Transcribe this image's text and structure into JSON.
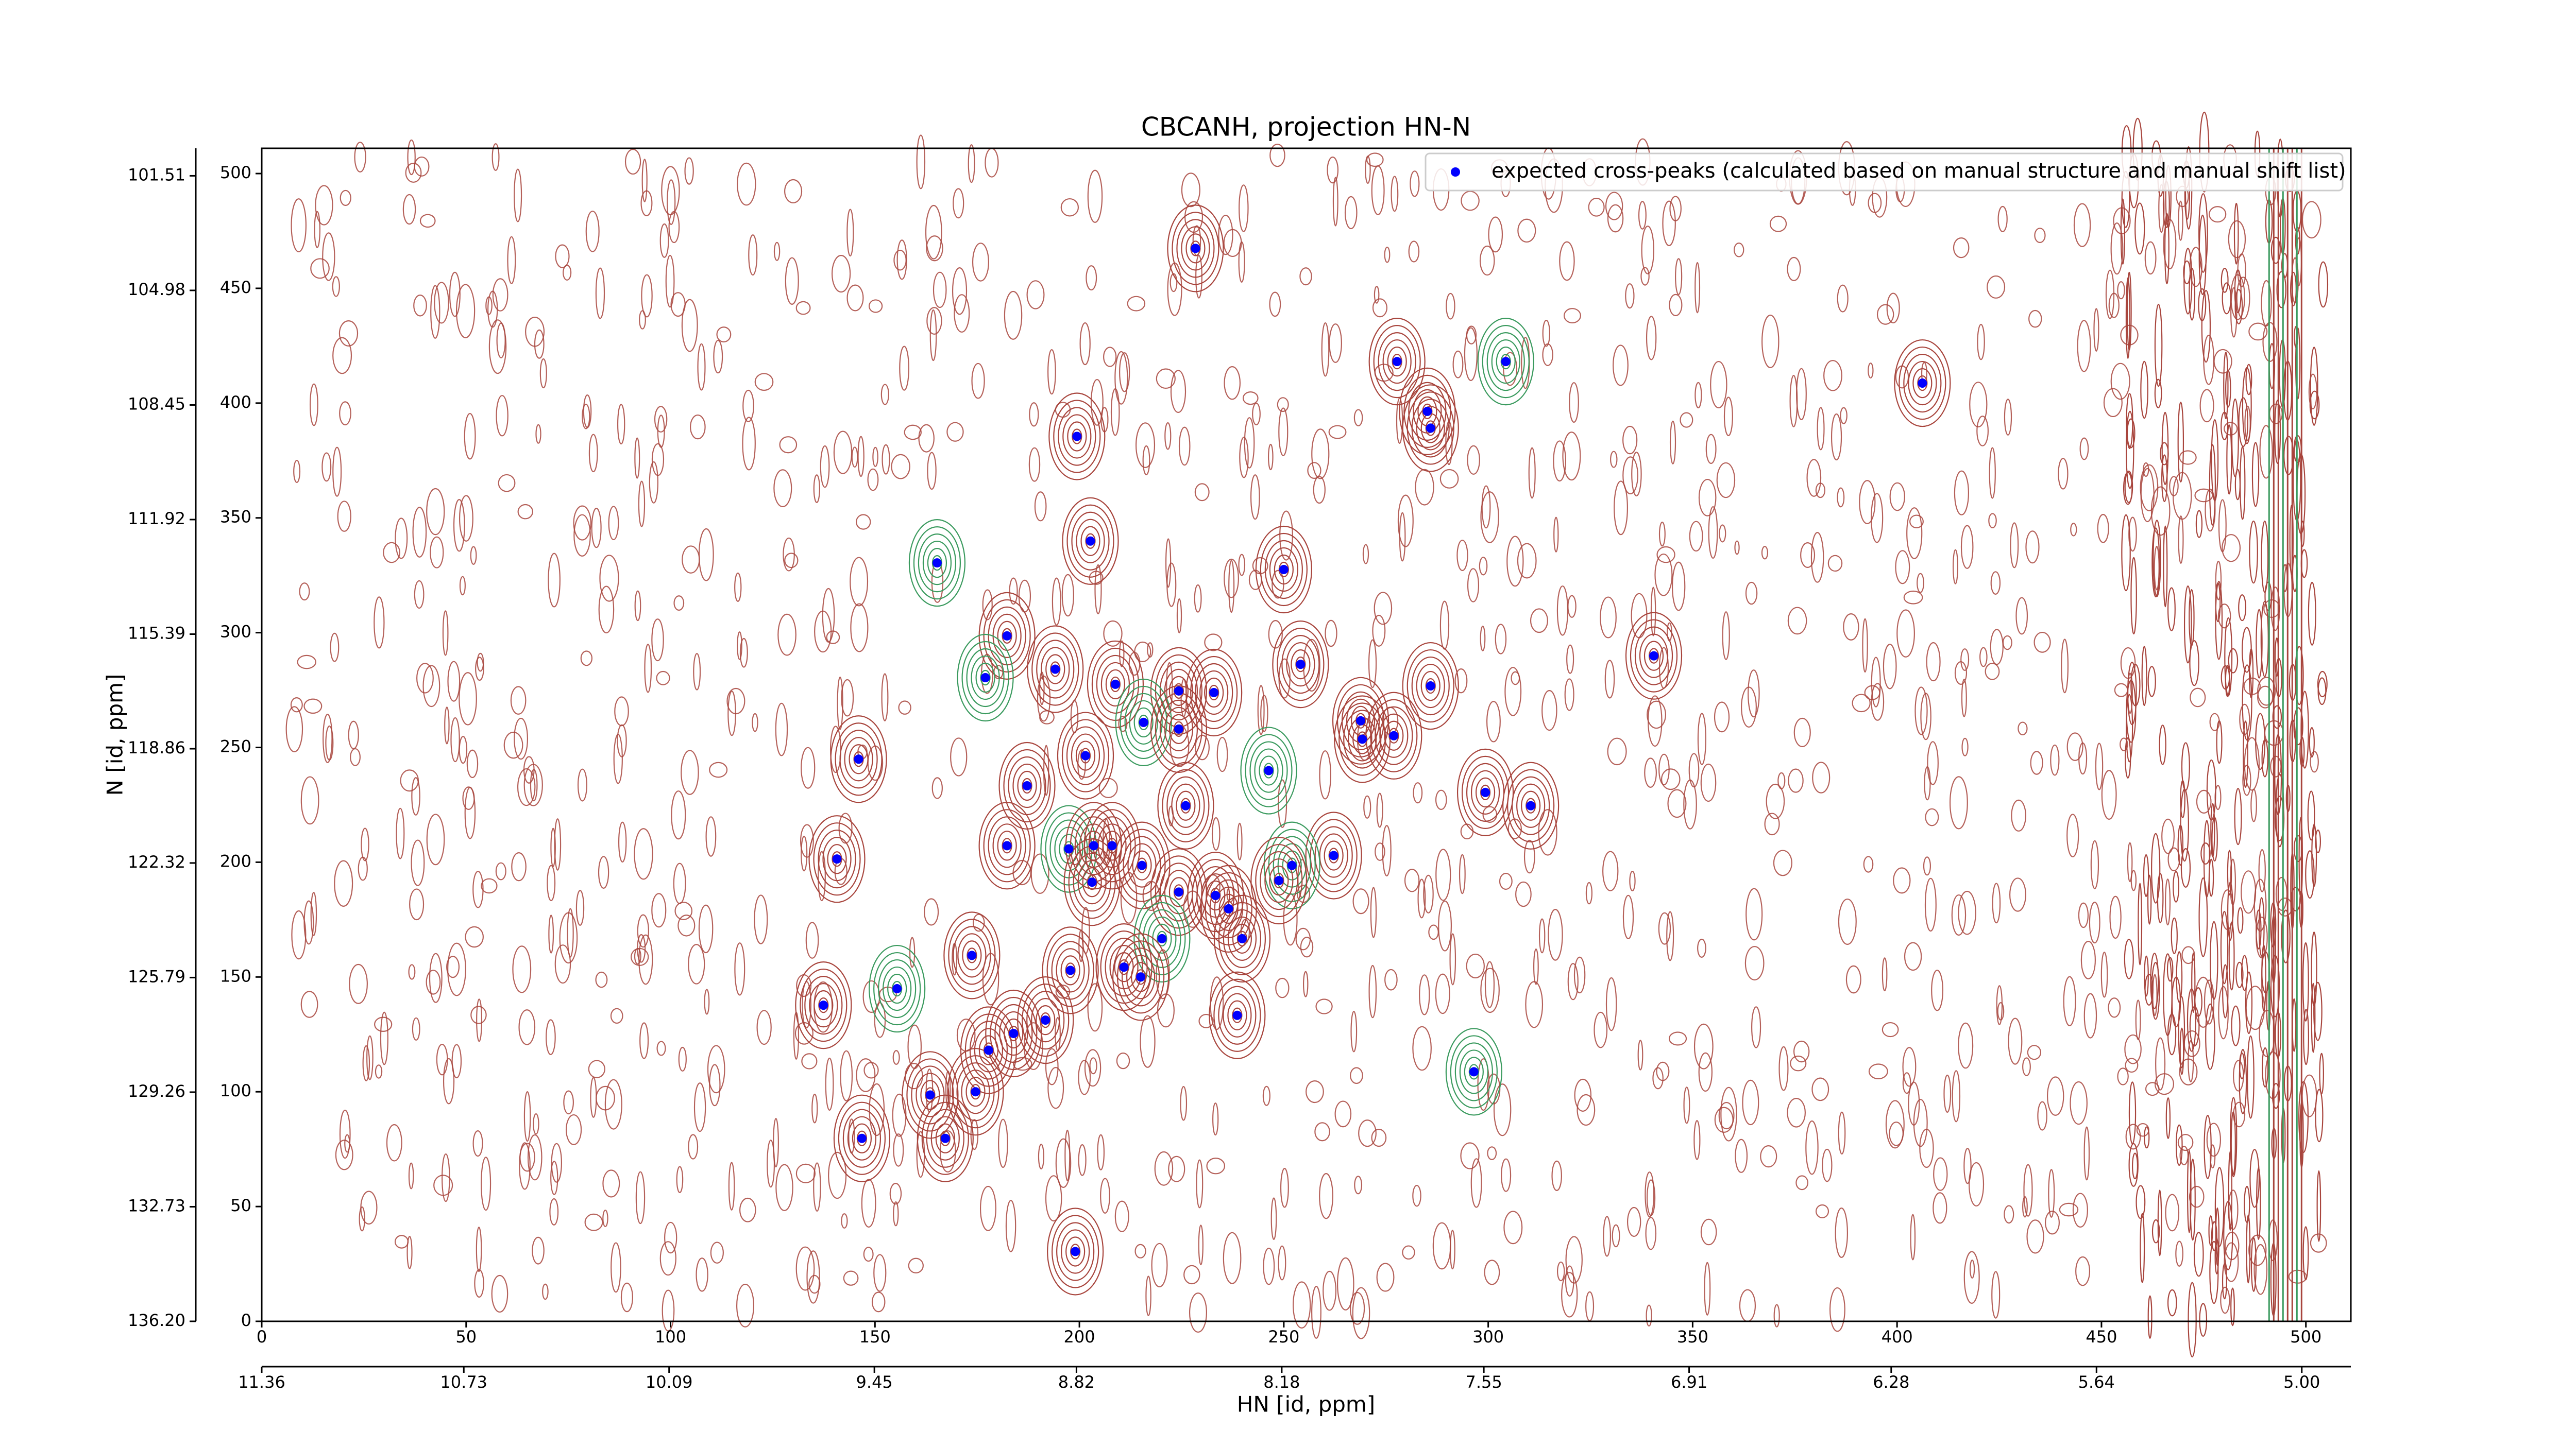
{
  "chart_data": {
    "type": "scatter",
    "title": "CBCANH, projection HN-N",
    "xlabel": "HN [id, ppm]",
    "ylabel": "N [id, ppm]",
    "xlim": [
      0,
      511
    ],
    "ylim": [
      0,
      511
    ],
    "xticks": [
      0,
      50,
      100,
      150,
      200,
      250,
      300,
      350,
      400,
      450,
      500
    ],
    "yticks": [
      0,
      50,
      100,
      150,
      200,
      250,
      300,
      350,
      400,
      450,
      500
    ],
    "x2lim": [
      11.36,
      4.847
    ],
    "x2ticks": [
      11.36,
      10.73,
      10.09,
      9.45,
      8.82,
      8.18,
      7.55,
      6.91,
      6.28,
      5.64,
      {
        "value": 5,
        "label": "5.00"
      }
    ],
    "y2lim": [
      136.2,
      100.677
    ],
    "y2ticks": [
      {
        "value": 136.2,
        "label": "136.20"
      },
      132.73,
      129.26,
      125.79,
      122.32,
      118.86,
      115.39,
      111.92,
      108.45,
      104.98,
      101.51
    ],
    "legend": "upper right",
    "grid": false,
    "series": [
      {
        "name": "expected cross-peaks (calculated based on manual structure and manual shift list)",
        "color": "#0000ff",
        "x": [
          228.4,
          277.7,
          304.3,
          406.2,
          285.1,
          285.9,
          199.4,
          202.7,
          165.2,
          250.0,
          182.3,
          340.5,
          254.1,
          194.1,
          177.0,
          208.8,
          224.3,
          232.9,
          285.9,
          268.8,
          215.7,
          224.3,
          276.9,
          269.2,
          146.0,
          201.5,
          246.3,
          187.2,
          299.3,
          226.0,
          310.4,
          182.3,
          197.4,
          203.5,
          208.0,
          262.2,
          140.7,
          215.3,
          252.0,
          203.1,
          248.8,
          224.3,
          233.3,
          236.5,
          220.2,
          239.8,
          173.7,
          197.8,
          210.9,
          215.0,
          155.4,
          137.4,
          238.6,
          191.7,
          183.9,
          177.8,
          296.5,
          174.6,
          163.5,
          146.8,
          167.2,
          199.0
        ],
        "values": [
          467.4,
          418.1,
          418.1,
          408.7,
          396.4,
          389.1,
          385.5,
          339.9,
          330.4,
          327.5,
          298.6,
          289.9,
          286.2,
          284.1,
          280.4,
          277.5,
          274.6,
          273.9,
          276.8,
          261.6,
          260.9,
          258.0,
          255.1,
          253.6,
          244.9,
          246.4,
          239.9,
          233.3,
          230.4,
          224.6,
          224.6,
          207.2,
          205.8,
          207.2,
          207.2,
          202.9,
          201.4,
          198.6,
          198.6,
          191.3,
          192.0,
          187.0,
          185.5,
          179.7,
          166.7,
          166.7,
          159.4,
          152.9,
          154.3,
          150.0,
          144.9,
          137.7,
          133.3,
          131.2,
          125.4,
          118.1,
          108.7,
          100.0,
          98.6,
          79.7,
          79.7,
          30.4
        ]
      }
    ]
  }
}
